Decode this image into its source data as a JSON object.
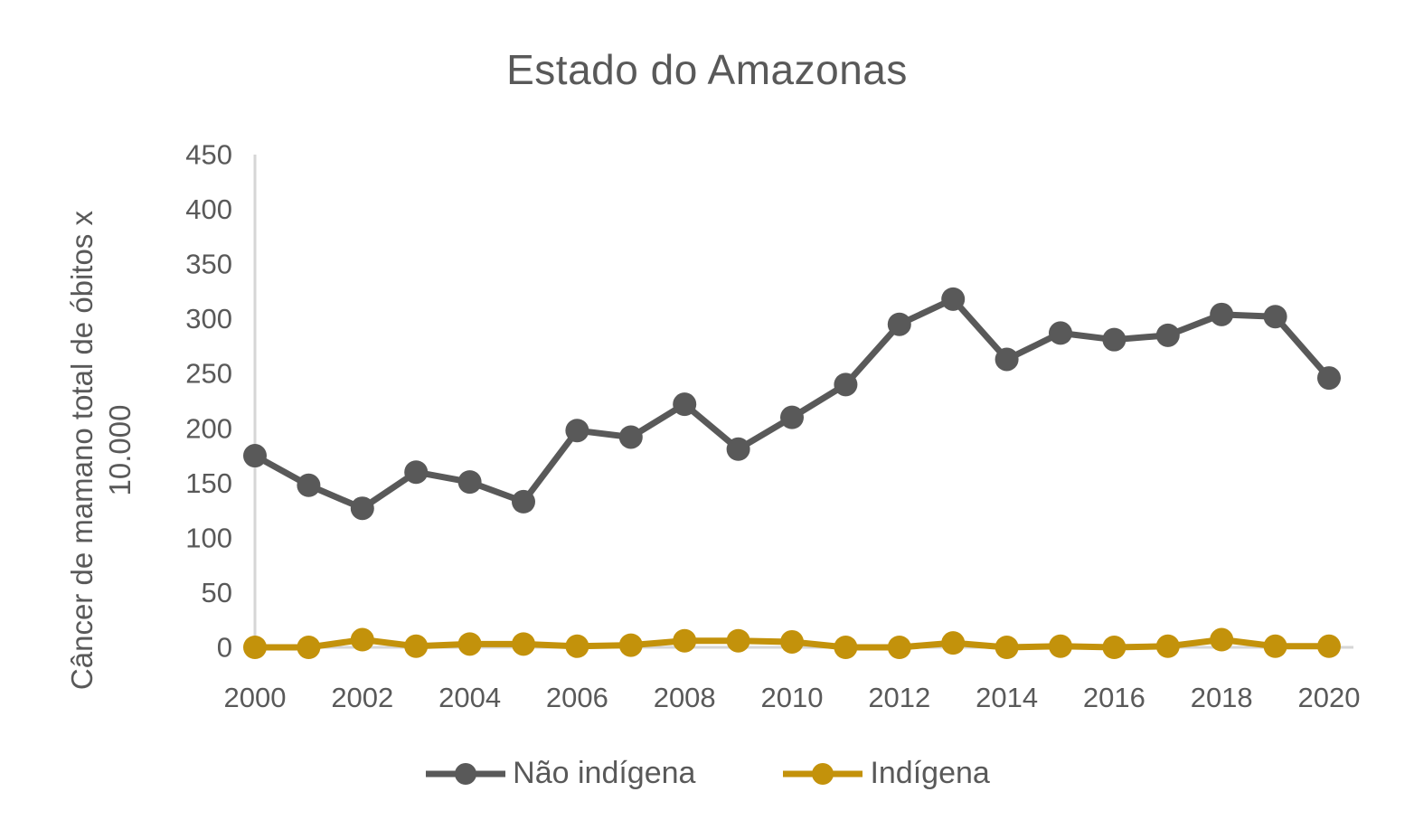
{
  "title": "Estado do Amazonas",
  "y_axis": {
    "label_line1": "Câncer de mamano total de óbitos x",
    "label_line2": "10.000"
  },
  "colors": {
    "text": "#595959",
    "axis_line": "#D6D6D6",
    "series_nao_indigena": "#595959",
    "series_indigena": "#C3920B"
  },
  "chart_data": {
    "type": "line",
    "title": "Estado do Amazonas",
    "ylabel": "Câncer de mamano total de óbitos x 10.000",
    "xlabel": "",
    "grid": false,
    "legend_position": "bottom",
    "ylim": [
      0,
      450
    ],
    "y_ticks": [
      0,
      50,
      100,
      150,
      200,
      250,
      300,
      350,
      400,
      450
    ],
    "x": [
      2000,
      2001,
      2002,
      2003,
      2004,
      2005,
      2006,
      2007,
      2008,
      2009,
      2010,
      2011,
      2012,
      2013,
      2014,
      2015,
      2016,
      2017,
      2018,
      2019,
      2020
    ],
    "x_tick_labels": [
      "2000",
      "2002",
      "2004",
      "2006",
      "2008",
      "2010",
      "2012",
      "2014",
      "2016",
      "2018",
      "2020"
    ],
    "x_tick_every": 2,
    "series": [
      {
        "name": "Não indígena",
        "color": "#595959",
        "values": [
          175,
          148,
          127,
          160,
          151,
          133,
          198,
          192,
          222,
          181,
          210,
          240,
          295,
          318,
          263,
          287,
          281,
          285,
          304,
          302,
          246
        ]
      },
      {
        "name": "Indígena",
        "color": "#C3920B",
        "values": [
          0,
          0,
          7,
          1,
          3,
          3,
          1,
          2,
          6,
          6,
          5,
          0,
          0,
          4,
          0,
          1,
          0,
          1,
          7,
          1,
          1
        ]
      }
    ]
  }
}
